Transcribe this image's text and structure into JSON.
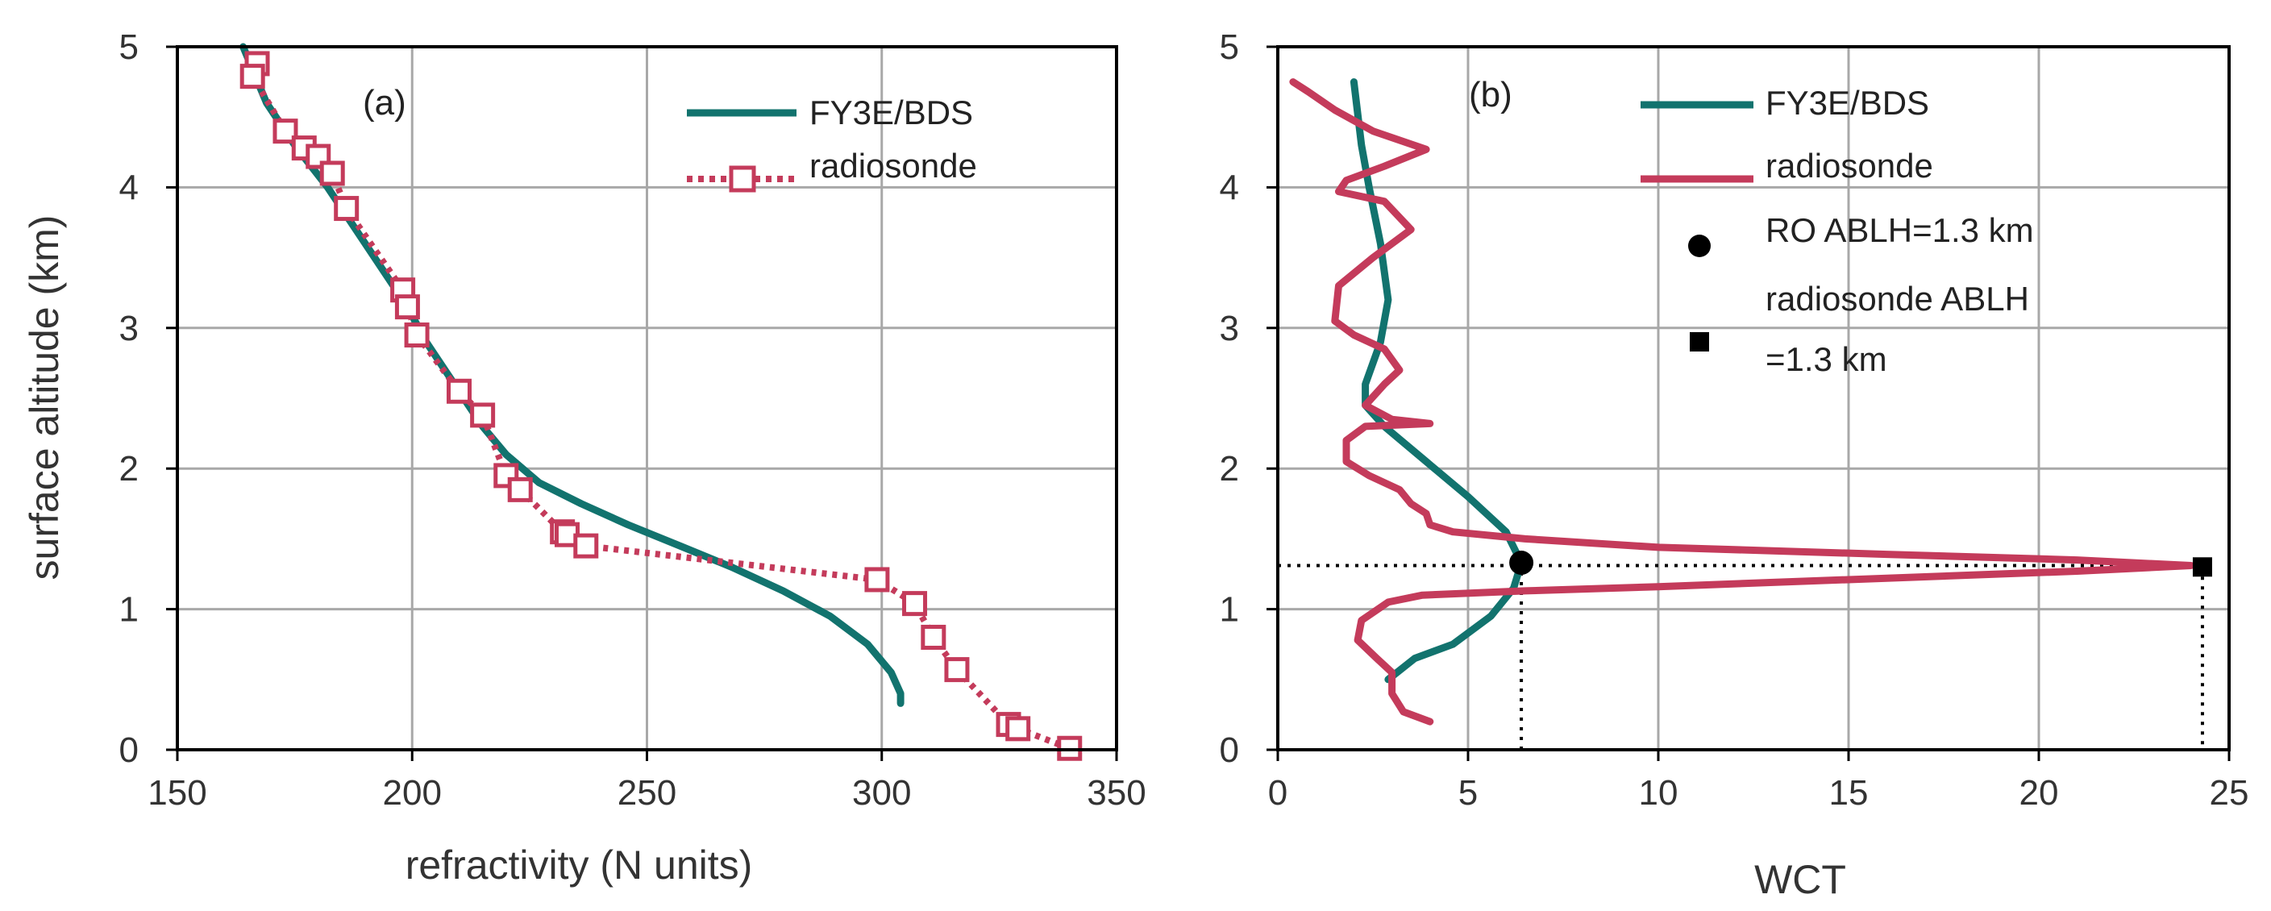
{
  "colors": {
    "teal": "#12736e",
    "red": "#c43b5b",
    "grid": "#a8a8a8",
    "axis": "#000000",
    "marker": "#000000"
  },
  "chart_data": [
    {
      "type": "line",
      "panel_label": "(a)",
      "xlabel": "refractivity (N units)",
      "ylabel": "surface altitude (km)",
      "xlim": [
        150,
        350
      ],
      "ylim": [
        0,
        5
      ],
      "xticks": [
        150,
        200,
        250,
        300,
        350
      ],
      "yticks": [
        0,
        1,
        2,
        3,
        4,
        5
      ],
      "grid": true,
      "legend_position": "top-right",
      "series": [
        {
          "name": "FY3E/BDS",
          "style": "solid",
          "color": "teal",
          "points": [
            [
              164,
              5.0
            ],
            [
              169,
              4.6
            ],
            [
              175,
              4.3
            ],
            [
              182,
              4.0
            ],
            [
              188,
              3.7
            ],
            [
              194,
              3.4
            ],
            [
              199,
              3.15
            ],
            [
              203,
              2.9
            ],
            [
              207,
              2.7
            ],
            [
              211,
              2.5
            ],
            [
              215,
              2.3
            ],
            [
              220,
              2.1
            ],
            [
              227,
              1.9
            ],
            [
              236,
              1.75
            ],
            [
              246,
              1.6
            ],
            [
              257,
              1.45
            ],
            [
              268,
              1.3
            ],
            [
              279,
              1.13
            ],
            [
              289,
              0.95
            ],
            [
              297,
              0.75
            ],
            [
              302,
              0.55
            ],
            [
              304,
              0.4
            ],
            [
              304,
              0.33
            ]
          ]
        },
        {
          "name": "radiosonde",
          "style": "dotted",
          "marker": "open-square",
          "color": "red",
          "points": [
            [
              167,
              4.88
            ],
            [
              166,
              4.79
            ],
            [
              173,
              4.4
            ],
            [
              177,
              4.28
            ],
            [
              180,
              4.22
            ],
            [
              183,
              4.1
            ],
            [
              186,
              3.85
            ],
            [
              198,
              3.27
            ],
            [
              199,
              3.15
            ],
            [
              201,
              2.95
            ],
            [
              210,
              2.55
            ],
            [
              215,
              2.38
            ],
            [
              220,
              1.95
            ],
            [
              223,
              1.85
            ],
            [
              232,
              1.55
            ],
            [
              233,
              1.53
            ],
            [
              237,
              1.45
            ],
            [
              299,
              1.21
            ],
            [
              307,
              1.04
            ],
            [
              311,
              0.8
            ],
            [
              316,
              0.57
            ],
            [
              327,
              0.18
            ],
            [
              329,
              0.15
            ],
            [
              340,
              0.01
            ]
          ]
        }
      ]
    },
    {
      "type": "line",
      "panel_label": "(b)",
      "xlabel": "WCT",
      "ylabel": "",
      "xlim": [
        0,
        25
      ],
      "ylim": [
        0,
        5
      ],
      "xticks": [
        0,
        5,
        10,
        15,
        20,
        25
      ],
      "yticks": [
        0,
        1,
        2,
        3,
        4,
        5
      ],
      "grid": true,
      "legend_position": "top-right",
      "series": [
        {
          "name": "FY3E/BDS",
          "style": "solid",
          "color": "teal",
          "points": [
            [
              2.9,
              0.5
            ],
            [
              3.6,
              0.65
            ],
            [
              4.6,
              0.75
            ],
            [
              5.6,
              0.95
            ],
            [
              6.2,
              1.15
            ],
            [
              6.4,
              1.33
            ],
            [
              6.0,
              1.55
            ],
            [
              5.0,
              1.8
            ],
            [
              3.9,
              2.05
            ],
            [
              2.8,
              2.3
            ],
            [
              2.3,
              2.45
            ],
            [
              2.3,
              2.6
            ],
            [
              2.7,
              2.9
            ],
            [
              2.9,
              3.2
            ],
            [
              2.7,
              3.6
            ],
            [
              2.4,
              4.0
            ],
            [
              2.2,
              4.3
            ],
            [
              2.0,
              4.75
            ]
          ]
        },
        {
          "name": "radiosonde",
          "style": "solid",
          "color": "red",
          "points": [
            [
              4.0,
              0.2
            ],
            [
              3.3,
              0.27
            ],
            [
              3.0,
              0.4
            ],
            [
              3.0,
              0.55
            ],
            [
              2.6,
              0.65
            ],
            [
              2.1,
              0.78
            ],
            [
              2.2,
              0.92
            ],
            [
              2.9,
              1.05
            ],
            [
              3.8,
              1.1
            ],
            [
              6.5,
              1.13
            ],
            [
              10,
              1.16
            ],
            [
              16,
              1.22
            ],
            [
              21,
              1.27
            ],
            [
              24,
              1.31
            ],
            [
              21,
              1.35
            ],
            [
              16,
              1.39
            ],
            [
              10,
              1.44
            ],
            [
              6.5,
              1.5
            ],
            [
              4.6,
              1.55
            ],
            [
              4.0,
              1.6
            ],
            [
              3.9,
              1.68
            ],
            [
              3.5,
              1.75
            ],
            [
              3.2,
              1.85
            ],
            [
              2.4,
              1.95
            ],
            [
              1.8,
              2.05
            ],
            [
              1.8,
              2.2
            ],
            [
              2.3,
              2.3
            ],
            [
              4.0,
              2.32
            ],
            [
              3.0,
              2.35
            ],
            [
              2.3,
              2.45
            ],
            [
              2.8,
              2.6
            ],
            [
              3.2,
              2.7
            ],
            [
              2.8,
              2.85
            ],
            [
              2.0,
              2.95
            ],
            [
              1.5,
              3.05
            ],
            [
              1.6,
              3.3
            ],
            [
              2.5,
              3.5
            ],
            [
              3.5,
              3.7
            ],
            [
              2.8,
              3.9
            ],
            [
              1.6,
              3.97
            ],
            [
              1.8,
              4.05
            ],
            [
              2.8,
              4.15
            ],
            [
              3.9,
              4.27
            ],
            [
              2.5,
              4.4
            ],
            [
              1.5,
              4.55
            ],
            [
              0.8,
              4.68
            ],
            [
              0.4,
              4.75
            ]
          ]
        }
      ],
      "ablh_markers": [
        {
          "name": "RO ABLH=1.3 km",
          "shape": "circle",
          "x": 6.4,
          "y": 1.33
        },
        {
          "name": "radiosonde ABLH",
          "name_line2": "=1.3 km",
          "shape": "square",
          "x": 24.3,
          "y": 1.3
        }
      ]
    }
  ]
}
